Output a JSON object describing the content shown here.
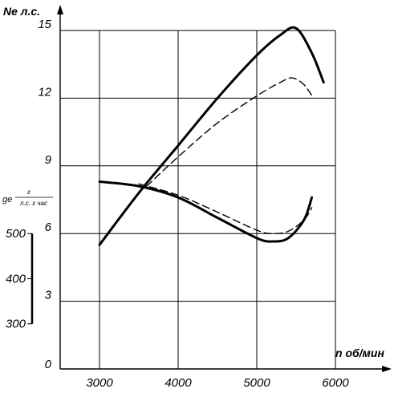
{
  "chart_data": {
    "type": "line",
    "title": "",
    "xlabel": "n об/мин",
    "ylabel": "Ne л.с.",
    "xlim": [
      2500,
      6000
    ],
    "ylim": [
      0,
      15
    ],
    "x_ticks": [
      "3000",
      "4000",
      "5000",
      "6000"
    ],
    "y_ticks": [
      "0",
      "3",
      "6",
      "9",
      "12",
      "15"
    ],
    "grid": true,
    "secondary_axis": {
      "label_prefix": "ge",
      "label_numerator": "г",
      "label_denominator": "л.с. х час",
      "ticks": [
        "300",
        "400",
        "500"
      ],
      "range_values": [
        300,
        500
      ],
      "primary_equivalent": [
        2.0,
        6.0
      ]
    },
    "series": [
      {
        "style": "solid",
        "axis": "primary",
        "x": [
          3000,
          3500,
          4000,
          4500,
          5000,
          5300,
          5500,
          5700,
          5850
        ],
        "y": [
          5.5,
          7.8,
          9.9,
          12.0,
          13.9,
          14.8,
          15.1,
          14.0,
          12.7
        ]
      },
      {
        "style": "dashed",
        "axis": "primary",
        "x": [
          3600,
          4000,
          4500,
          5000,
          5300,
          5450,
          5600,
          5720
        ],
        "y": [
          8.1,
          9.4,
          10.9,
          12.1,
          12.7,
          12.9,
          12.6,
          12.0
        ]
      },
      {
        "style": "solid",
        "axis": "secondary",
        "x": [
          3000,
          3500,
          4000,
          4500,
          5000,
          5200,
          5400,
          5600,
          5700
        ],
        "y": [
          8.3,
          8.1,
          7.6,
          6.7,
          5.8,
          5.65,
          5.8,
          6.6,
          7.6
        ]
      },
      {
        "style": "dashed",
        "axis": "secondary",
        "x": [
          3500,
          4000,
          4500,
          5000,
          5200,
          5400,
          5600,
          5700
        ],
        "y": [
          8.2,
          7.7,
          6.95,
          6.15,
          6.0,
          6.1,
          6.6,
          7.15
        ]
      }
    ]
  }
}
